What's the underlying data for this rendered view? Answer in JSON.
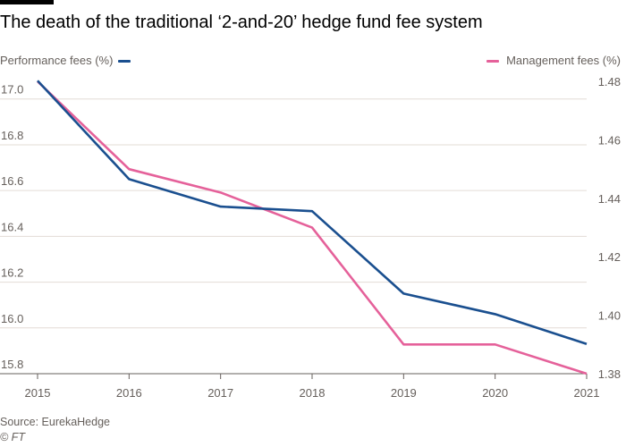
{
  "header": {
    "title": "The death of the traditional ‘2-and-20’ hedge fund fee system"
  },
  "footer": {
    "source": "Source: EurekaHedge",
    "credit": "© FT"
  },
  "colors": {
    "performance": "#1a4f8f",
    "management": "#e5619a",
    "grid": "#e3dcd6",
    "axis": "#66605c"
  },
  "chart_data": {
    "type": "line",
    "title": "The death of the traditional ‘2-and-20’ hedge fund fee system",
    "x": [
      2015,
      2016,
      2017,
      2018,
      2019,
      2020,
      2021
    ],
    "x_tick_labels": [
      "2015",
      "2016",
      "2017",
      "2018",
      "2019",
      "2020",
      "2021"
    ],
    "series": [
      {
        "name": "Performance fees (%)",
        "axis": "left",
        "color": "#1a4f8f",
        "values": [
          17.08,
          16.65,
          16.53,
          16.51,
          16.15,
          16.06,
          15.93
        ]
      },
      {
        "name": "Management fees (%)",
        "axis": "right",
        "color": "#e5619a",
        "values": [
          1.48,
          1.45,
          1.442,
          1.43,
          1.39,
          1.39,
          1.38
        ]
      }
    ],
    "y_left": {
      "ylim": [
        15.8,
        17.12
      ],
      "ticks": [
        15.8,
        16.0,
        16.2,
        16.4,
        16.6,
        16.8,
        17.0
      ],
      "tick_labels": [
        "15.8",
        "16.0",
        "16.2",
        "16.4",
        "16.6",
        "16.8",
        "17.0"
      ]
    },
    "y_right": {
      "ylim": [
        1.38,
        1.4834
      ],
      "ticks": [
        1.38,
        1.4,
        1.42,
        1.44,
        1.46,
        1.48
      ],
      "tick_labels": [
        "1.38",
        "1.40",
        "1.42",
        "1.44",
        "1.46",
        "1.48"
      ]
    },
    "grid": true,
    "legend": "top"
  }
}
